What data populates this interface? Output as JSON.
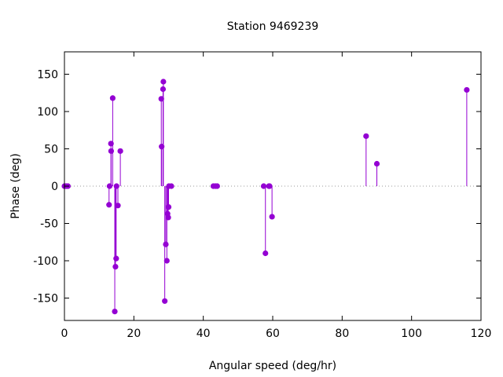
{
  "chart_data": {
    "type": "scatter",
    "style": "impulses-with-points",
    "title": "Station 9469239",
    "xlabel": "Angular speed (deg/hr)",
    "ylabel": "Phase (deg)",
    "xlim": [
      0,
      120
    ],
    "ylim": [
      -180,
      180
    ],
    "xticks": [
      0,
      20,
      40,
      60,
      80,
      100,
      120
    ],
    "yticks": [
      -150,
      -100,
      -50,
      0,
      50,
      100,
      150
    ],
    "zero_line": true,
    "grid": false,
    "series_color": "#9400d3",
    "points": [
      {
        "x": 0.0,
        "y": 0
      },
      {
        "x": 0.5,
        "y": 0
      },
      {
        "x": 1.0,
        "y": 0
      },
      {
        "x": 12.85,
        "y": -25
      },
      {
        "x": 13.0,
        "y": 0
      },
      {
        "x": 13.4,
        "y": 57
      },
      {
        "x": 13.45,
        "y": 47
      },
      {
        "x": 13.9,
        "y": 118
      },
      {
        "x": 14.5,
        "y": -168
      },
      {
        "x": 14.7,
        "y": -108
      },
      {
        "x": 14.9,
        "y": -97
      },
      {
        "x": 15.0,
        "y": 0
      },
      {
        "x": 15.4,
        "y": -26
      },
      {
        "x": 16.1,
        "y": 47
      },
      {
        "x": 27.9,
        "y": 117
      },
      {
        "x": 28.0,
        "y": 53
      },
      {
        "x": 28.4,
        "y": 130
      },
      {
        "x": 28.5,
        "y": 140
      },
      {
        "x": 28.9,
        "y": -154
      },
      {
        "x": 29.2,
        "y": -78
      },
      {
        "x": 29.5,
        "y": -100
      },
      {
        "x": 29.7,
        "y": -37
      },
      {
        "x": 29.9,
        "y": -42
      },
      {
        "x": 30.0,
        "y": -28
      },
      {
        "x": 30.1,
        "y": 0
      },
      {
        "x": 30.8,
        "y": 0
      },
      {
        "x": 42.9,
        "y": 0
      },
      {
        "x": 43.5,
        "y": 0
      },
      {
        "x": 44.0,
        "y": 0
      },
      {
        "x": 57.4,
        "y": 0
      },
      {
        "x": 57.9,
        "y": -90
      },
      {
        "x": 58.9,
        "y": 0
      },
      {
        "x": 59.1,
        "y": 0
      },
      {
        "x": 59.8,
        "y": -41
      },
      {
        "x": 86.9,
        "y": 67
      },
      {
        "x": 90.0,
        "y": 30
      },
      {
        "x": 115.9,
        "y": 129
      }
    ]
  }
}
